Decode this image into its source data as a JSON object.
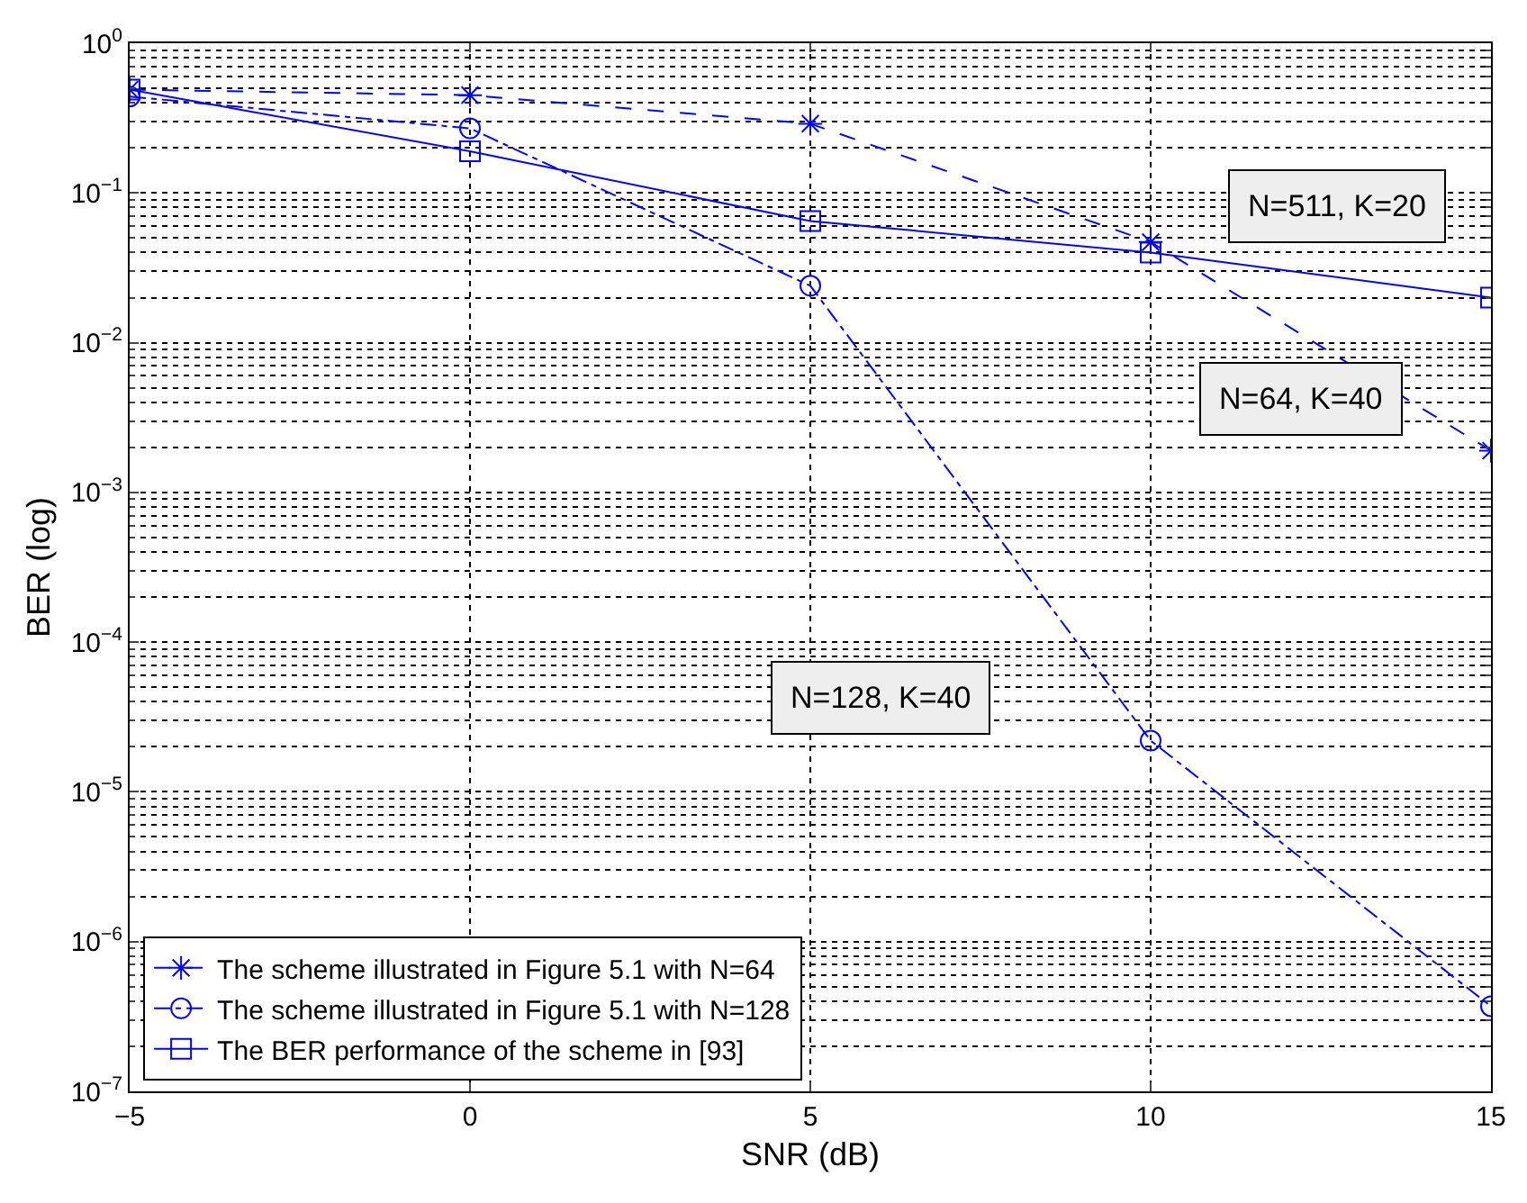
{
  "chart_data": {
    "type": "line",
    "xlabel": "SNR (dB)",
    "ylabel": "BER (log)",
    "x": [
      -5,
      0,
      5,
      10,
      15
    ],
    "series": [
      {
        "name": "The scheme illustrated in Figure 5.1 with N=64",
        "color": "#0000ff",
        "marker": "cross",
        "line_style": "dashed",
        "values": [
          0.49,
          0.45,
          0.29,
          0.047,
          0.0019
        ]
      },
      {
        "name": "The scheme illustrated in Figure 5.1 with N=128",
        "color": "#0000ff",
        "marker": "circle",
        "line_style": "dashdot",
        "values": [
          0.44,
          0.27,
          0.024,
          2.2e-05,
          3.7e-07
        ]
      },
      {
        "name": "The BER performance of the scheme in [93]",
        "color": "#0000ff",
        "marker": "square",
        "line_style": "solid",
        "values": [
          0.49,
          0.19,
          0.065,
          0.04,
          0.02
        ]
      }
    ],
    "xlim": [
      -5,
      15
    ],
    "xticks": [
      {
        "value": -5,
        "label": "−5"
      },
      0,
      5,
      10,
      15
    ],
    "ylim": [
      1e-07,
      1
    ],
    "yticks": [
      {
        "value": 1e-07,
        "label": "10$^{−7}$"
      },
      {
        "value": 1e-06,
        "label": "10$^{−6}$"
      },
      {
        "value": 1e-05,
        "label": "10$^{−5}$"
      },
      {
        "value": 0.0001,
        "label": "10$^{−4}$"
      },
      {
        "value": 0.001,
        "label": "10$^{−3}$"
      },
      {
        "value": 0.01,
        "label": "10$^{−2}$"
      },
      {
        "value": 0.1,
        "label": "10$^{−1}$"
      },
      {
        "value": 1,
        "label": "10$^{0}$"
      }
    ],
    "log": "y",
    "grid": true,
    "legend": "bottom left",
    "annotations": [
      "N=511, K=20",
      "N=64, K=40",
      "N=128, K=40"
    ]
  }
}
